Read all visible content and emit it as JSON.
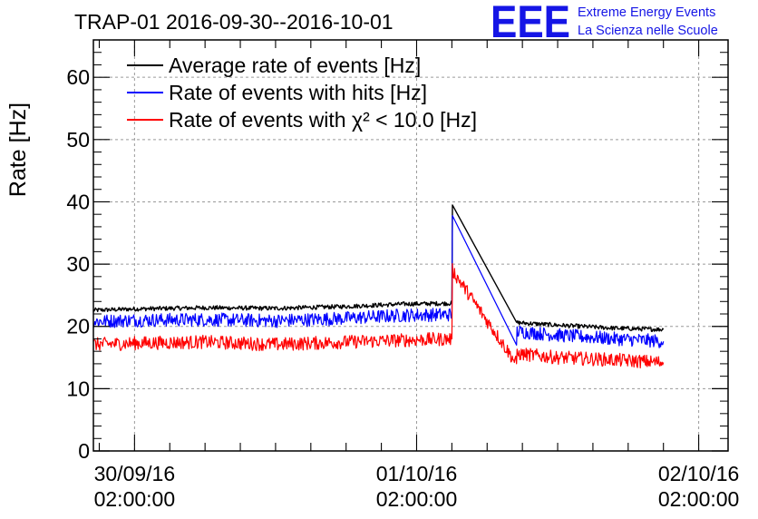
{
  "chart_data": {
    "type": "line",
    "title": "TRAP-01 2016-09-30--2016-10-01",
    "xlabel": "",
    "ylabel": "Rate [Hz]",
    "ylim": [
      0,
      66
    ],
    "yticks": [
      0,
      10,
      20,
      30,
      40,
      50,
      60
    ],
    "xlim_hours": [
      -3.5,
      50.5
    ],
    "x_unit": "hours since 30/09/16 02:00:00",
    "xticks": [
      {
        "date": "30/09/16",
        "time": "02:00:00",
        "hour": 0
      },
      {
        "date": "01/10/16",
        "time": "02:00:00",
        "hour": 24
      },
      {
        "date": "02/10/16",
        "time": "02:00:00",
        "hour": 48
      }
    ],
    "grid": true,
    "legend_position": "top-left",
    "logo": {
      "mark": "EEE",
      "line1": "Extreme Energy Events",
      "line2": "La Scienza nelle Scuole"
    },
    "series": [
      {
        "name": "Average rate of events [Hz]",
        "color": "#000000",
        "noise": 0.35,
        "points": [
          [
            -3.5,
            22.6
          ],
          [
            0,
            22.8
          ],
          [
            6,
            23.0
          ],
          [
            12,
            22.9
          ],
          [
            18,
            23.2
          ],
          [
            23,
            23.6
          ],
          [
            27,
            23.7
          ],
          [
            27.05,
            39.5
          ],
          [
            32.5,
            20.6
          ],
          [
            36,
            20.2
          ],
          [
            41,
            19.7
          ],
          [
            45,
            19.5
          ]
        ]
      },
      {
        "name": "Rate of events with hits [Hz]",
        "color": "#0000ff",
        "noise": 1.1,
        "points": [
          [
            -3.5,
            20.8
          ],
          [
            0,
            21.0
          ],
          [
            6,
            21.1
          ],
          [
            12,
            20.9
          ],
          [
            18,
            21.3
          ],
          [
            23,
            21.8
          ],
          [
            27,
            21.9
          ],
          [
            27.05,
            37.8
          ],
          [
            32.5,
            17.0
          ],
          [
            32.55,
            19.2
          ],
          [
            36,
            18.6
          ],
          [
            41,
            18.0
          ],
          [
            45,
            17.6
          ]
        ]
      },
      {
        "name": "Rate of events with χ² < 10.0 [Hz]",
        "color": "#ff0000",
        "noise": 1.1,
        "points": [
          [
            -3.5,
            17.1
          ],
          [
            0,
            17.3
          ],
          [
            6,
            17.5
          ],
          [
            12,
            17.1
          ],
          [
            18,
            17.5
          ],
          [
            23,
            17.8
          ],
          [
            27,
            18.0
          ],
          [
            27.05,
            29.0
          ],
          [
            32.5,
            14.0
          ],
          [
            32.55,
            15.6
          ],
          [
            36,
            15.0
          ],
          [
            41,
            14.6
          ],
          [
            45,
            14.2
          ]
        ]
      }
    ]
  }
}
